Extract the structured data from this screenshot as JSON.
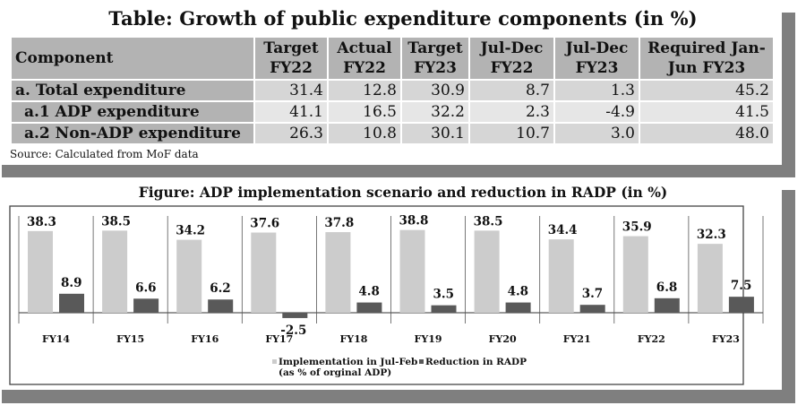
{
  "table": {
    "title": "Table: Growth of public expenditure components (in %)",
    "headers": [
      {
        "line1": "Component",
        "line2": ""
      },
      {
        "line1": "Target",
        "line2": "FY22"
      },
      {
        "line1": "Actual",
        "line2": "FY22"
      },
      {
        "line1": "Target",
        "line2": "FY23"
      },
      {
        "line1": "Jul-Dec",
        "line2": "FY22"
      },
      {
        "line1": "Jul-Dec",
        "line2": "FY23"
      },
      {
        "line1": "Required Jan-",
        "line2": "Jun FY23"
      }
    ],
    "rows": [
      {
        "label": "a. Total expenditure",
        "values": [
          "31.4",
          "12.8",
          "30.9",
          "8.7",
          "1.3",
          "45.2"
        ]
      },
      {
        "label": "a.1 ADP expenditure",
        "values": [
          "41.1",
          "16.5",
          "32.2",
          "2.3",
          "-4.9",
          "41.5"
        ]
      },
      {
        "label": "a.2 Non-ADP expenditure",
        "values": [
          "26.3",
          "10.8",
          "30.1",
          "10.7",
          "3.0",
          "48.0"
        ]
      }
    ],
    "source": "Source: Calculated from MoF data"
  },
  "colors": {
    "header_bg": "#b3b3b3",
    "series_implementation": "#cccccc",
    "series_reduction": "#595959",
    "shadow": "#7f7f7f"
  },
  "chart_data": {
    "type": "bar",
    "title": "Figure: ADP implementation  scenario and reduction in RADP (in %)",
    "xlabel": "",
    "ylabel": "",
    "categories": [
      "FY14",
      "FY15",
      "FY16",
      "FY17",
      "FY18",
      "FY19",
      "FY20",
      "FY21",
      "FY22",
      "FY23"
    ],
    "series": [
      {
        "name": "Implementation in Jul-Feb (as % of orginal ADP)",
        "legend_line1": "Implementation in Jul-Feb",
        "legend_line2": "(as % of orginal ADP)",
        "values": [
          38.3,
          38.5,
          34.2,
          37.6,
          37.8,
          38.8,
          38.5,
          34.4,
          35.9,
          32.3
        ]
      },
      {
        "name": "Reduction in RADP",
        "legend_line1": "Reduction in RADP",
        "legend_line2": "",
        "values": [
          8.9,
          6.6,
          6.2,
          -2.5,
          4.8,
          3.5,
          4.8,
          3.7,
          6.8,
          7.5
        ]
      }
    ],
    "data_labels": [
      [
        "38.3",
        "38.5",
        "34.2",
        "37.6",
        "37.8",
        "38.8",
        "38.5",
        "34.4",
        "35.9",
        "32.3"
      ],
      [
        "8.9",
        "6.6",
        "6.2",
        "-2.5",
        "4.8",
        "3.5",
        "4.8",
        "3.7",
        "6.8",
        "7.5"
      ]
    ],
    "ylim": [
      -2.5,
      42
    ],
    "grid": false,
    "legend_position": "bottom"
  }
}
